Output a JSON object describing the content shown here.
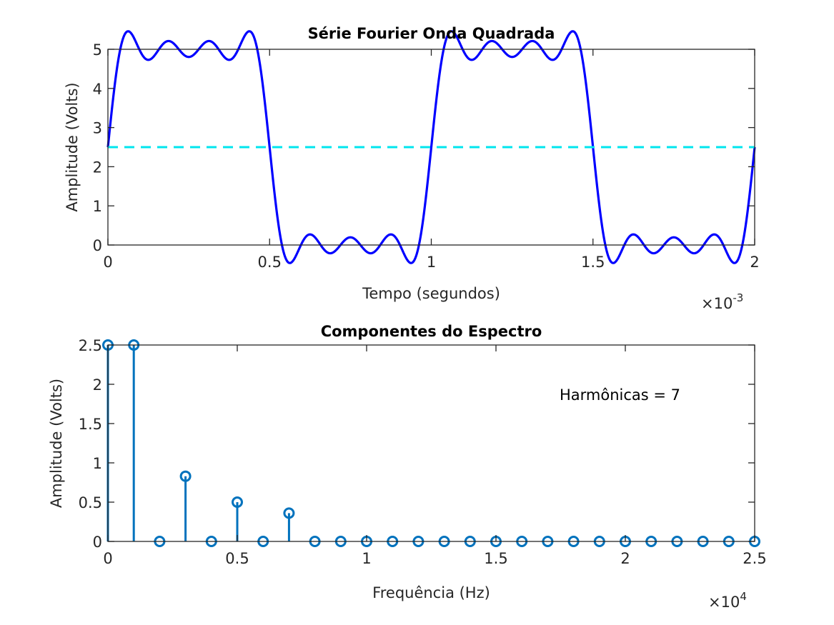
{
  "chart_data": [
    {
      "type": "line",
      "title": "Série Fourier Onda Quadrada",
      "xlabel": "Tempo (segundos)",
      "ylabel": "Amplitude (Volts)",
      "x_exponent": "×10^-3",
      "x_exponent_base": "×10",
      "x_exponent_power": "-3",
      "xlim": [
        0,
        0.002
      ],
      "ylim": [
        0,
        5
      ],
      "xticks": [
        0,
        0.0005,
        0.001,
        0.0015,
        0.002
      ],
      "xtick_labels": [
        "0",
        "0.5",
        "1",
        "1.5",
        "2"
      ],
      "yticks": [
        0,
        1,
        2,
        3,
        4,
        5
      ],
      "ytick_labels": [
        "0",
        "1",
        "2",
        "3",
        "4",
        "5"
      ],
      "series": [
        {
          "kind": "fourier_square_wave",
          "dc_offset": 2.5,
          "amplitude": 2.5,
          "fundamental_hz": 1000,
          "harmonics": [
            1,
            3,
            5,
            7
          ],
          "color": "#0000ff",
          "style": "solid"
        },
        {
          "kind": "constant",
          "value": 2.5,
          "color": "#00e5ee",
          "style": "dashed"
        }
      ]
    },
    {
      "type": "stem",
      "title": "Componentes do Espectro",
      "xlabel": "Frequência (Hz)",
      "ylabel": "Amplitude (Volts)",
      "x_exponent": "×10^4",
      "x_exponent_base": "×10",
      "x_exponent_power": "4",
      "xlim": [
        0,
        25000
      ],
      "ylim": [
        0,
        2.5
      ],
      "xticks": [
        0,
        5000,
        10000,
        15000,
        20000,
        25000
      ],
      "xtick_labels": [
        "0",
        "0.5",
        "1",
        "1.5",
        "2",
        "2.5"
      ],
      "yticks": [
        0,
        0.5,
        1,
        1.5,
        2,
        2.5
      ],
      "ytick_labels": [
        "0",
        "0.5",
        "1",
        "1.5",
        "2",
        "2.5"
      ],
      "annotation": "Harmônicas = 7",
      "color": "#0072bd",
      "x": [
        0,
        1000,
        2000,
        3000,
        4000,
        5000,
        6000,
        7000,
        8000,
        9000,
        10000,
        11000,
        12000,
        13000,
        14000,
        15000,
        16000,
        17000,
        18000,
        19000,
        20000,
        21000,
        22000,
        23000,
        24000,
        25000
      ],
      "y": [
        2.5,
        2.5,
        0,
        0.83,
        0,
        0.5,
        0,
        0.36,
        0,
        0,
        0,
        0,
        0,
        0,
        0,
        0,
        0,
        0,
        0,
        0,
        0,
        0,
        0,
        0,
        0,
        0
      ]
    }
  ]
}
